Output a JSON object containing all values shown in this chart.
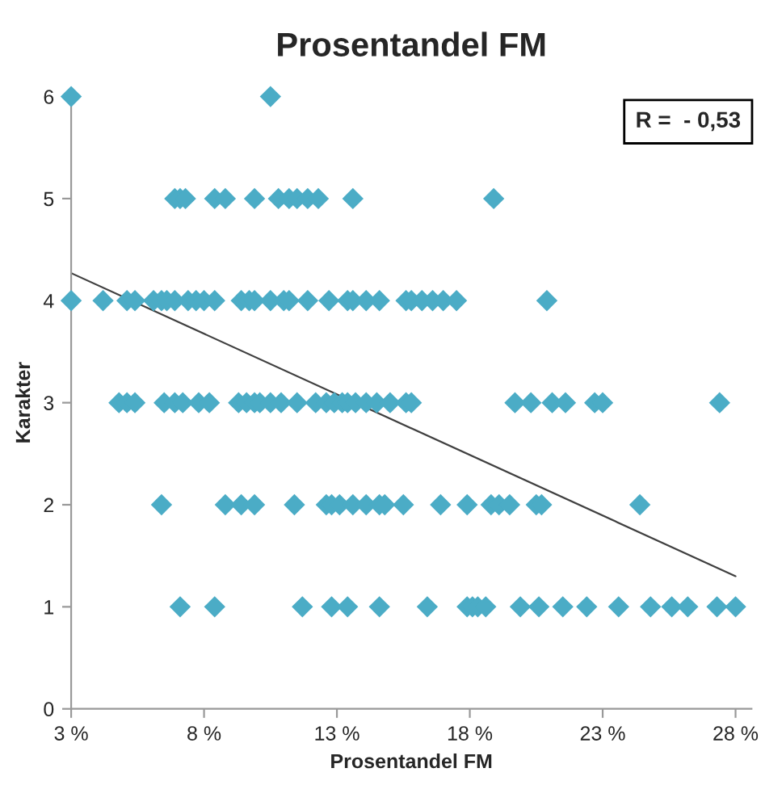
{
  "chart_data": {
    "type": "scatter",
    "title": "Prosentandel FM",
    "xlabel": "Prosentandel FM",
    "ylabel": "Karakter",
    "annotations": [
      "R =  - 0,53"
    ],
    "xlim": [
      3,
      28.6
    ],
    "ylim": [
      0,
      6
    ],
    "xticks": [
      {
        "value": 3,
        "label": "3 %"
      },
      {
        "value": 8,
        "label": "8 %"
      },
      {
        "value": 13,
        "label": "13 %"
      },
      {
        "value": 18,
        "label": "18 %"
      },
      {
        "value": 23,
        "label": "23 %"
      },
      {
        "value": 28,
        "label": "28 %"
      }
    ],
    "yticks": [
      0,
      1,
      2,
      3,
      4,
      5,
      6
    ],
    "grid": false,
    "marker": "diamond",
    "series": [
      {
        "color": "#4bacc6",
        "x": [
          3.0,
          10.5,
          6.9,
          7.1,
          7.3,
          8.4,
          8.8,
          9.9,
          10.8,
          11.2,
          11.5,
          11.9,
          12.3,
          13.6,
          18.9,
          3.0,
          4.2,
          5.1,
          5.4,
          6.1,
          6.4,
          6.6,
          6.9,
          7.4,
          7.7,
          8.0,
          8.4,
          9.4,
          9.7,
          9.9,
          10.5,
          11.0,
          11.2,
          11.9,
          12.7,
          13.4,
          13.6,
          14.1,
          14.6,
          15.6,
          15.8,
          16.2,
          16.6,
          17.0,
          17.5,
          20.9,
          4.8,
          5.1,
          5.4,
          6.5,
          6.9,
          7.2,
          7.8,
          8.2,
          9.3,
          9.6,
          9.9,
          10.1,
          10.5,
          10.9,
          11.5,
          12.2,
          12.6,
          12.9,
          13.2,
          13.4,
          13.7,
          14.1,
          14.5,
          15.0,
          15.6,
          15.8,
          19.7,
          20.3,
          21.1,
          21.6,
          22.7,
          23.0,
          27.4,
          6.4,
          8.8,
          9.4,
          9.9,
          11.4,
          12.6,
          12.8,
          13.1,
          13.6,
          14.1,
          14.6,
          14.8,
          15.5,
          16.9,
          17.9,
          18.8,
          19.1,
          19.5,
          20.5,
          20.7,
          24.4,
          7.1,
          8.4,
          11.7,
          12.8,
          13.4,
          14.6,
          16.4,
          17.9,
          18.1,
          18.3,
          18.6,
          19.9,
          20.6,
          21.5,
          22.4,
          23.6,
          24.8,
          25.6,
          26.2,
          27.3,
          28.0
        ],
        "values": [
          6,
          6,
          5,
          5,
          5,
          5,
          5,
          5,
          5,
          5,
          5,
          5,
          5,
          5,
          5,
          4,
          4,
          4,
          4,
          4,
          4,
          4,
          4,
          4,
          4,
          4,
          4,
          4,
          4,
          4,
          4,
          4,
          4,
          4,
          4,
          4,
          4,
          4,
          4,
          4,
          4,
          4,
          4,
          4,
          4,
          4,
          3,
          3,
          3,
          3,
          3,
          3,
          3,
          3,
          3,
          3,
          3,
          3,
          3,
          3,
          3,
          3,
          3,
          3,
          3,
          3,
          3,
          3,
          3,
          3,
          3,
          3,
          3,
          3,
          3,
          3,
          3,
          3,
          3,
          2,
          2,
          2,
          2,
          2,
          2,
          2,
          2,
          2,
          2,
          2,
          2,
          2,
          2,
          2,
          2,
          2,
          2,
          2,
          2,
          2,
          1,
          1,
          1,
          1,
          1,
          1,
          1,
          1,
          1,
          1,
          1,
          1,
          1,
          1,
          1,
          1,
          1,
          1,
          1,
          1,
          1
        ]
      },
      {
        "type": "line",
        "color": "#404040",
        "x": [
          3,
          28
        ],
        "values": [
          4.27,
          1.3
        ],
        "marker": "none"
      }
    ]
  }
}
